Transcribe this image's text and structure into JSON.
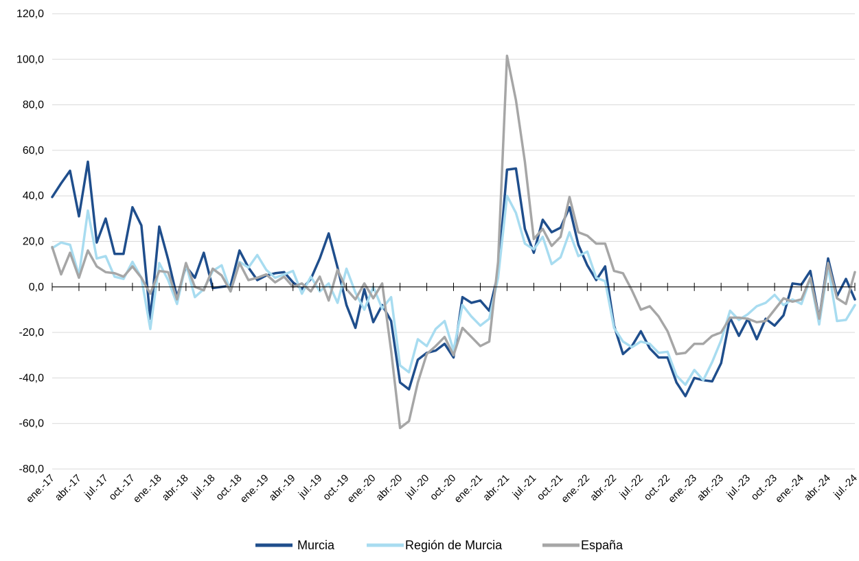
{
  "chart_data": {
    "type": "line",
    "title": "",
    "xlabel": "",
    "ylabel": "",
    "ylim": [
      -80,
      120
    ],
    "yticks": [
      "-80,0",
      "-60,0",
      "-40,0",
      "-20,0",
      "0,0",
      "20,0",
      "40,0",
      "60,0",
      "80,0",
      "100,0",
      "120,0"
    ],
    "grid": "horizontal",
    "legend": "bottom",
    "tick_labels": [
      "ene.-17",
      "abr.-17",
      "jul.-17",
      "oct.-17",
      "ene.-18",
      "abr.-18",
      "jul.-18",
      "oct.-18",
      "ene.-19",
      "abr.-19",
      "jul.-19",
      "oct.-19",
      "ene.-20",
      "abr.-20",
      "jul.-20",
      "oct.-20",
      "ene.-21",
      "abr.-21",
      "jul.-21",
      "oct.-21",
      "ene.-22",
      "abr.-22",
      "jul.-22",
      "oct.-22",
      "ene.-23",
      "abr.-23",
      "jul.-23",
      "oct.-23",
      "ene.-24",
      "abr.-24",
      "jul.-24"
    ],
    "x_start": "ene.-17",
    "x_end": "jul.-24",
    "series": [
      {
        "name": "Murcia",
        "color": "#1f4e8c",
        "values": [
          39.5,
          45.5,
          51,
          31,
          55,
          19.5,
          30,
          14.5,
          14.5,
          35,
          27,
          -14,
          26.5,
          12,
          -4.5,
          9,
          4,
          15,
          -0.5,
          0,
          0.5,
          16,
          8.5,
          3,
          5,
          6,
          6.5,
          2,
          -1,
          3.5,
          12.5,
          23.5,
          8.5,
          -8,
          -18,
          -1,
          -15.5,
          -8,
          -15,
          -42,
          -45,
          -32,
          -29,
          -28,
          -25,
          -31,
          -4.5,
          -7,
          -6,
          -10.5,
          6,
          51.5,
          52,
          25.5,
          15,
          29.5,
          24,
          26,
          35,
          18.5,
          9.5,
          3,
          9,
          -17,
          -29.5,
          -26,
          -19.5,
          -27,
          -31,
          -31,
          -42,
          -48,
          -40,
          -41,
          -41.5,
          -33.5,
          -13.5,
          -21.5,
          -14,
          -23,
          -14,
          -17,
          -12.5,
          1.5,
          1,
          7,
          -14,
          12.5,
          -4,
          3.5,
          -5.5
        ]
      },
      {
        "name": "Región de Murcia",
        "color": "#a8dcf0",
        "values": [
          17,
          19.5,
          18.5,
          5,
          33.5,
          12.5,
          13.5,
          4.5,
          3.5,
          11,
          4,
          -18.5,
          10.5,
          3,
          -7.5,
          10,
          -4.5,
          -1,
          7,
          9.5,
          -2,
          11,
          8.5,
          14,
          7.5,
          4,
          5.5,
          7,
          -3,
          4.5,
          -2,
          1.5,
          -7,
          8,
          -2.5,
          -10,
          0,
          -9.5,
          -4.5,
          -34.5,
          -37.5,
          -23,
          -26,
          -18.5,
          -15,
          -28,
          -8,
          -13,
          -17,
          -14,
          4,
          40,
          32.5,
          19,
          16.5,
          22,
          10,
          13,
          24,
          13.5,
          15.5,
          4,
          2.5,
          -18,
          -24,
          -26.5,
          -24,
          -25,
          -29,
          -28.5,
          -39,
          -43,
          -36.5,
          -41,
          -33,
          -23.5,
          -10.5,
          -14.5,
          -12,
          -8.5,
          -7,
          -3.5,
          -8,
          -5.5,
          -7.5,
          3.5,
          -16.5,
          9,
          -15,
          -14.5,
          -8
        ]
      },
      {
        "name": "España",
        "color": "#a6a6a6",
        "values": [
          17.5,
          5.5,
          15,
          4,
          16,
          9,
          6.5,
          6,
          4.5,
          9,
          4,
          -3,
          7,
          6.5,
          -5.5,
          10.5,
          0,
          -1.5,
          8,
          5,
          -2,
          10.5,
          3,
          4,
          5.5,
          2,
          4.5,
          0,
          1.5,
          -2,
          4.5,
          -6,
          7.5,
          -1,
          -5.5,
          1.5,
          -5,
          1.5,
          -28,
          -62,
          -59,
          -42,
          -29.5,
          -26,
          -22,
          -30,
          -18,
          -22,
          -26,
          -24,
          11,
          101.5,
          82,
          55,
          21,
          25.5,
          18,
          22,
          39.5,
          24,
          22.5,
          19,
          19,
          7,
          6,
          -1.5,
          -10,
          -8.5,
          -13,
          -19.5,
          -29.5,
          -29,
          -25,
          -25,
          -21.5,
          -20,
          -13.5,
          -13.5,
          -14,
          -15.5,
          -15,
          -10,
          -5,
          -6.5,
          -5.5,
          4,
          -14,
          10.5,
          -5,
          -7.5,
          6.5
        ]
      }
    ]
  }
}
